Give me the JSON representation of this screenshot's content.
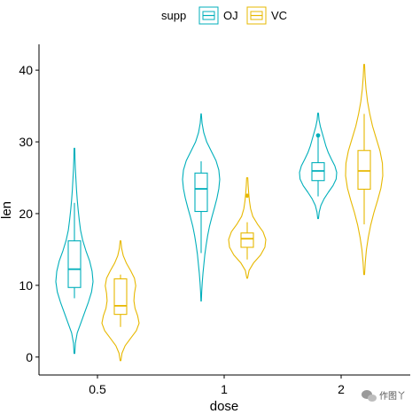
{
  "chart_data": {
    "type": "violin",
    "xlabel": "dose",
    "ylabel": "len",
    "categories": [
      "0.5",
      "1",
      "2"
    ],
    "yticks": [
      0,
      10,
      20,
      30,
      40
    ],
    "ylim": [
      -2.5,
      43.6
    ],
    "legend_position": "top",
    "legend_title": "supp",
    "series": [
      {
        "name": "OJ",
        "color": "#00AFBB",
        "groups": [
          {
            "dose": "0.5",
            "min": 8.2,
            "q1": 9.7,
            "median": 12.25,
            "q3": 16.2,
            "max": 21.5,
            "outliers": [],
            "range": [
              0.5,
              29.1
            ],
            "kde_widths": [
              0.02,
              0.05,
              0.15,
              0.35,
              0.55,
              0.75,
              0.92,
              1.0,
              0.95,
              0.82,
              0.62,
              0.45,
              0.33,
              0.26,
              0.2,
              0.15,
              0.11,
              0.08,
              0.05,
              0.03,
              0.02
            ]
          },
          {
            "dose": "1",
            "min": 14.5,
            "q1": 20.3,
            "median": 23.45,
            "q3": 25.65,
            "max": 27.3,
            "outliers": [],
            "range": [
              7.8,
              33.9
            ],
            "kde_widths": [
              0.01,
              0.03,
              0.06,
              0.1,
              0.15,
              0.2,
              0.27,
              0.35,
              0.45,
              0.58,
              0.72,
              0.85,
              0.95,
              1.0,
              0.95,
              0.8,
              0.55,
              0.3,
              0.14,
              0.05,
              0.01
            ]
          },
          {
            "dose": "2",
            "min": 22.4,
            "q1": 24.6,
            "median": 25.95,
            "q3": 27.1,
            "max": 30.9,
            "outliers": [
              30.9
            ],
            "range": [
              19.3,
              34.0
            ],
            "kde_widths": [
              0.02,
              0.06,
              0.15,
              0.32,
              0.55,
              0.8,
              0.97,
              1.0,
              0.9,
              0.72,
              0.55,
              0.42,
              0.32,
              0.22,
              0.12,
              0.05,
              0.02
            ]
          }
        ]
      },
      {
        "name": "VC",
        "color": "#E7B800",
        "groups": [
          {
            "dose": "0.5",
            "min": 4.2,
            "q1": 5.95,
            "median": 7.15,
            "q3": 10.9,
            "max": 11.5,
            "outliers": [],
            "range": [
              -0.5,
              16.2
            ],
            "kde_widths": [
              0.02,
              0.08,
              0.25,
              0.55,
              0.85,
              1.0,
              0.92,
              0.78,
              0.72,
              0.75,
              0.82,
              0.75,
              0.55,
              0.32,
              0.15,
              0.06,
              0.02
            ]
          },
          {
            "dose": "1",
            "min": 13.6,
            "q1": 15.3,
            "median": 16.5,
            "q3": 17.3,
            "max": 18.8,
            "outliers": [
              22.5
            ],
            "range": [
              11.0,
              25.0
            ],
            "kde_widths": [
              0.02,
              0.1,
              0.35,
              0.72,
              0.95,
              1.0,
              0.85,
              0.55,
              0.3,
              0.18,
              0.12,
              0.08,
              0.05,
              0.03
            ]
          },
          {
            "dose": "2",
            "min": 18.5,
            "q1": 23.4,
            "median": 25.95,
            "q3": 28.8,
            "max": 33.9,
            "outliers": [],
            "range": [
              11.5,
              40.8
            ],
            "kde_widths": [
              0.02,
              0.06,
              0.12,
              0.22,
              0.35,
              0.52,
              0.72,
              0.9,
              1.0,
              0.98,
              0.85,
              0.65,
              0.45,
              0.3,
              0.18,
              0.1,
              0.05,
              0.02
            ]
          }
        ]
      }
    ]
  },
  "watermark": {
    "text": "作图丫"
  }
}
